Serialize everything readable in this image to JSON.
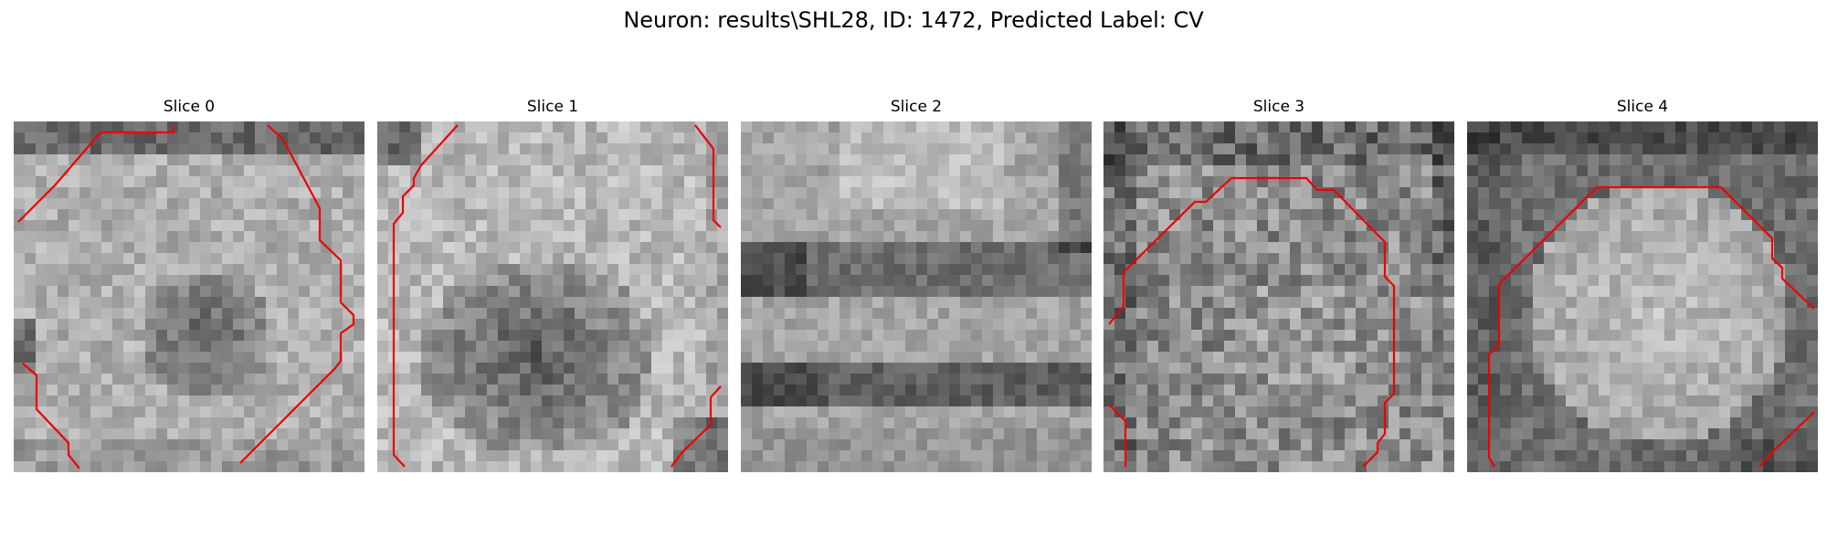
{
  "figure": {
    "title": "Neuron: results\\SHL28, ID: 1472, Predicted Label: CV"
  },
  "contour_color": "#ee0000",
  "image_description": "grayscale electron microscopy patch with red segmentation contour",
  "panels": [
    {
      "title": "Slice 0"
    },
    {
      "title": "Slice 1"
    },
    {
      "title": "Slice 2"
    },
    {
      "title": "Slice 3"
    },
    {
      "title": "Slice 4"
    }
  ]
}
